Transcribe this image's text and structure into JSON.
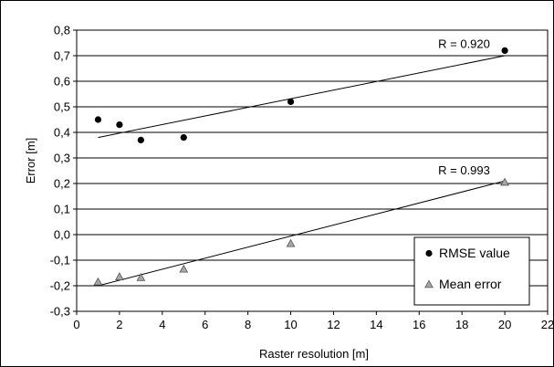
{
  "chart_data": {
    "type": "scatter",
    "xlabel": "Raster resolution [m]",
    "ylabel": "Error [m]",
    "xlim": [
      0,
      22
    ],
    "ylim": [
      -0.3,
      0.8
    ],
    "x_ticks": [
      0,
      2,
      4,
      6,
      8,
      10,
      12,
      14,
      16,
      18,
      20,
      22
    ],
    "x_tick_labels": [
      "0",
      "2",
      "4",
      "6",
      "8",
      "10",
      "12",
      "14",
      "16",
      "18",
      "20",
      "22"
    ],
    "y_ticks": [
      -0.3,
      -0.2,
      -0.1,
      0.0,
      0.1,
      0.2,
      0.3,
      0.4,
      0.5,
      0.6,
      0.7,
      0.8
    ],
    "y_tick_labels": [
      "-0,3",
      "-0,2",
      "-0,1",
      "0,0",
      "0,1",
      "0,2",
      "0,3",
      "0,4",
      "0,5",
      "0,6",
      "0,7",
      "0,8"
    ],
    "grid": "horizontal",
    "legend_position": "bottom-right",
    "series": [
      {
        "name": "RMSE value",
        "marker": "circle",
        "color": "#000000",
        "x": [
          1,
          2,
          3,
          5,
          10,
          20
        ],
        "y": [
          0.45,
          0.43,
          0.37,
          0.38,
          0.52,
          0.72
        ],
        "trendline": {
          "x": [
            1,
            20
          ],
          "y": [
            0.38,
            0.7
          ]
        },
        "annotation": {
          "text": "R = 0.920",
          "x": 18.1,
          "y": 0.73
        }
      },
      {
        "name": "Mean error",
        "marker": "triangle",
        "color": "#999999",
        "x": [
          1,
          2,
          3,
          5,
          10,
          20
        ],
        "y": [
          -0.185,
          -0.165,
          -0.168,
          -0.135,
          -0.035,
          0.205
        ],
        "trendline": {
          "x": [
            1,
            20
          ],
          "y": [
            -0.2,
            0.21
          ]
        },
        "annotation": {
          "text": "R = 0.993",
          "x": 18.1,
          "y": 0.235
        }
      }
    ]
  }
}
